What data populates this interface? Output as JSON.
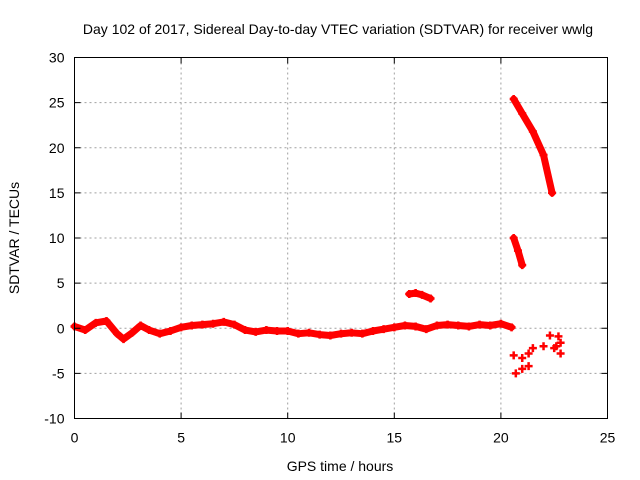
{
  "chart_data": {
    "type": "scatter",
    "title": "Day 102 of 2017, Sidereal Day-to-day VTEC variation (SDTVAR) for receiver wwlg",
    "xlabel": "GPS time / hours",
    "ylabel": "SDTVAR / TECUs",
    "xlim": [
      0,
      25
    ],
    "ylim": [
      -10,
      30
    ],
    "xticks": [
      0,
      5,
      10,
      15,
      20,
      25
    ],
    "yticks": [
      -10,
      -5,
      0,
      5,
      10,
      15,
      20,
      25,
      30
    ],
    "grid": true,
    "marker_color": "#ff0000",
    "series": [
      {
        "name": "main-track",
        "points": [
          [
            0,
            0.2
          ],
          [
            0.5,
            -0.2
          ],
          [
            1.0,
            0.6
          ],
          [
            1.5,
            0.8
          ],
          [
            2.0,
            -0.6
          ],
          [
            2.3,
            -1.2
          ],
          [
            2.7,
            -0.5
          ],
          [
            3.1,
            0.3
          ],
          [
            3.5,
            -0.2
          ],
          [
            4.0,
            -0.6
          ],
          [
            4.5,
            -0.3
          ],
          [
            5.0,
            0.1
          ],
          [
            5.5,
            0.3
          ],
          [
            6.0,
            0.4
          ],
          [
            6.5,
            0.5
          ],
          [
            7.0,
            0.7
          ],
          [
            7.5,
            0.4
          ],
          [
            8.0,
            -0.2
          ],
          [
            8.5,
            -0.4
          ],
          [
            9.0,
            -0.2
          ],
          [
            9.5,
            -0.3
          ],
          [
            10.0,
            -0.3
          ],
          [
            10.5,
            -0.6
          ],
          [
            11.0,
            -0.5
          ],
          [
            11.5,
            -0.7
          ],
          [
            12.0,
            -0.8
          ],
          [
            12.5,
            -0.6
          ],
          [
            13.0,
            -0.5
          ],
          [
            13.5,
            -0.6
          ],
          [
            14.0,
            -0.3
          ],
          [
            14.5,
            -0.1
          ],
          [
            15.0,
            0.1
          ],
          [
            15.5,
            0.3
          ],
          [
            16.0,
            0.2
          ],
          [
            16.5,
            -0.1
          ],
          [
            17.0,
            0.3
          ],
          [
            17.5,
            0.4
          ],
          [
            18.0,
            0.3
          ],
          [
            18.5,
            0.2
          ],
          [
            19.0,
            0.4
          ],
          [
            19.5,
            0.3
          ],
          [
            20.0,
            0.5
          ],
          [
            20.5,
            0.1
          ]
        ]
      },
      {
        "name": "short-arc",
        "points": [
          [
            15.7,
            3.8
          ],
          [
            16.0,
            3.9
          ],
          [
            16.3,
            3.7
          ],
          [
            16.7,
            3.3
          ]
        ]
      },
      {
        "name": "descending-arc-high",
        "points": [
          [
            20.6,
            25.4
          ],
          [
            21.0,
            23.8
          ],
          [
            21.5,
            21.8
          ],
          [
            22.0,
            19.2
          ],
          [
            22.4,
            15.0
          ]
        ]
      },
      {
        "name": "descending-arc-low",
        "points": [
          [
            20.6,
            10.0
          ],
          [
            20.8,
            8.6
          ],
          [
            21.0,
            7.0
          ]
        ]
      },
      {
        "name": "lower-cluster",
        "points": [
          [
            20.6,
            -3.0
          ],
          [
            21.0,
            -3.3
          ],
          [
            21.3,
            -2.8
          ],
          [
            21.5,
            -2.2
          ],
          [
            22.0,
            -2.0
          ],
          [
            22.5,
            -2.2
          ],
          [
            22.8,
            -2.8
          ],
          [
            20.7,
            -5.0
          ],
          [
            21.0,
            -4.5
          ],
          [
            21.3,
            -4.2
          ],
          [
            22.3,
            -0.8
          ],
          [
            22.7,
            -0.9
          ],
          [
            22.8,
            -1.6
          ],
          [
            22.6,
            -2.0
          ]
        ]
      }
    ]
  }
}
